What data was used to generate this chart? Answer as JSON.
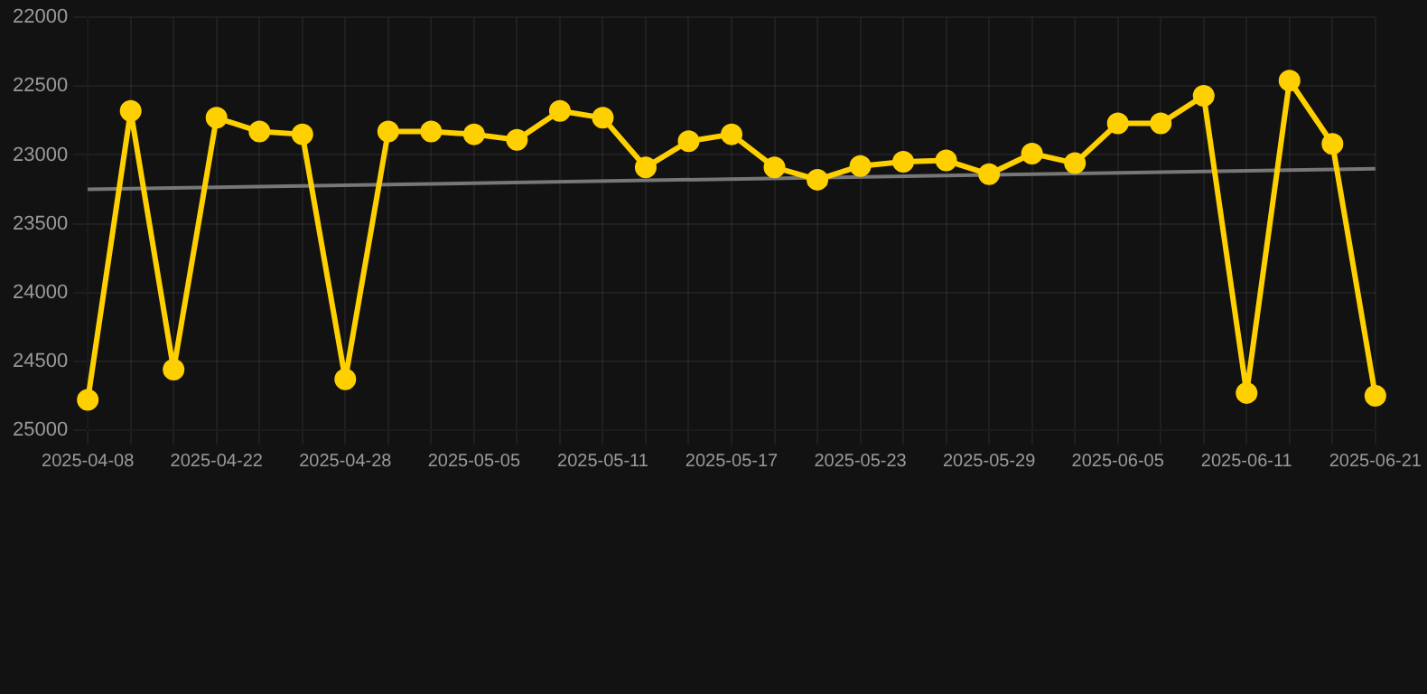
{
  "chart_data": {
    "type": "line",
    "categories": [
      "2025-04-08",
      null,
      null,
      "2025-04-22",
      null,
      null,
      "2025-04-28",
      null,
      null,
      "2025-05-05",
      null,
      null,
      "2025-05-11",
      null,
      null,
      "2025-05-17",
      null,
      null,
      "2025-05-23",
      null,
      null,
      "2025-05-29",
      null,
      null,
      "2025-06-05",
      null,
      null,
      "2025-06-11",
      null,
      null,
      "2025-06-21"
    ],
    "series": [
      {
        "color": "#ffd000",
        "marker": "circle",
        "values": [
          24780,
          22680,
          24560,
          22730,
          22830,
          22850,
          24630,
          22830,
          22830,
          22850,
          22890,
          22680,
          22730,
          23090,
          22900,
          22850,
          23090,
          23180,
          23080,
          23050,
          23040,
          23140,
          22990,
          23060,
          22770,
          22770,
          22570,
          24730,
          22460,
          22920,
          24750
        ]
      },
      {
        "type": "line",
        "color": "#777777",
        "marker": "none",
        "values": [
          23250,
          null,
          null,
          null,
          null,
          null,
          null,
          null,
          null,
          null,
          null,
          null,
          null,
          null,
          null,
          null,
          null,
          null,
          null,
          null,
          null,
          null,
          null,
          null,
          null,
          null,
          null,
          null,
          null,
          null,
          23100
        ]
      }
    ],
    "ylim": [
      25000,
      22000
    ],
    "yticks": [
      22000,
      22500,
      23000,
      23500,
      24000,
      24500,
      25000
    ],
    "grid": true,
    "legend": false
  }
}
